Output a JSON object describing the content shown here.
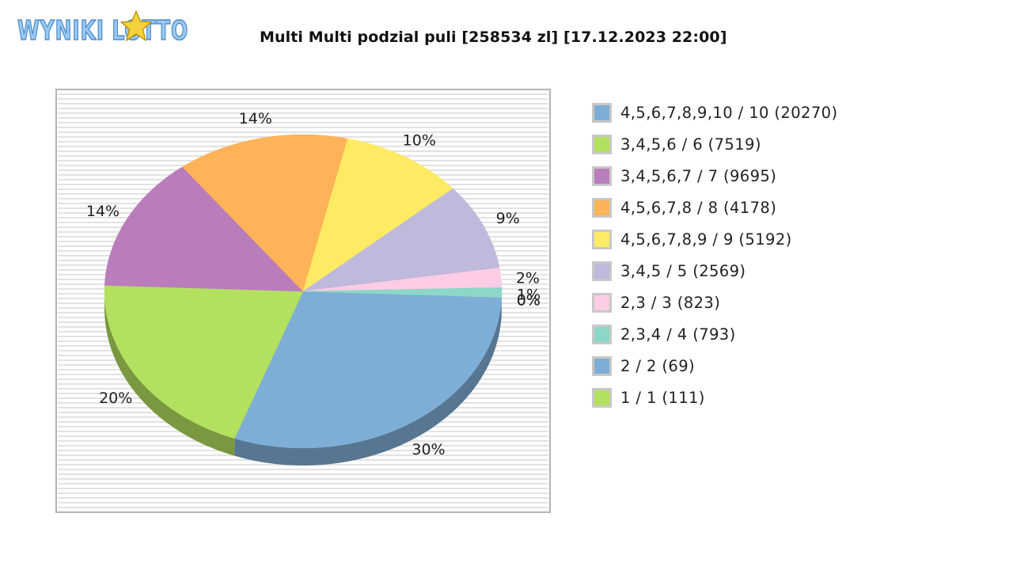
{
  "brand": {
    "logo_text": "WYNIKI LOTTO"
  },
  "chart_data": {
    "type": "pie",
    "title": "Multi Multi podzial puli [258534 zl] [17.12.2023 22:00]",
    "legend_position": "right",
    "slices": [
      {
        "label": "4,5,6,7,8,9,10 / 10 (20270)",
        "value": 20270,
        "percent_label": "30%",
        "color": "#7eaed5"
      },
      {
        "label": "3,4,5,6 / 6 (7519)",
        "value": 7519,
        "percent_label": "20%",
        "color": "#b3e05e"
      },
      {
        "label": "3,4,5,6,7 / 7 (9695)",
        "value": 9695,
        "percent_label": "14%",
        "color": "#ba7dbb"
      },
      {
        "label": "4,5,6,7,8 / 8 (4178)",
        "value": 4178,
        "percent_label": "14%",
        "color": "#feb359"
      },
      {
        "label": "4,5,6,7,8,9 / 9 (5192)",
        "value": 5192,
        "percent_label": "10%",
        "color": "#ffea64"
      },
      {
        "label": "3,4,5 / 5 (2569)",
        "value": 2569,
        "percent_label": "9%",
        "color": "#bfb9db"
      },
      {
        "label": "2,3 / 3 (823)",
        "value": 823,
        "percent_label": "2%",
        "color": "#fecce5"
      },
      {
        "label": "2,3,4 / 4 (793)",
        "value": 793,
        "percent_label": "1%",
        "color": "#8cd7c7"
      },
      {
        "label": "2 / 2 (69)",
        "value": 69,
        "percent_label": "0%",
        "color": "#7eaed5"
      },
      {
        "label": "1 / 1 (111)",
        "value": 111,
        "percent_label": "0%",
        "color": "#b3e05e"
      }
    ],
    "drawn_share_percent": [
      30,
      20,
      14,
      14,
      10,
      9,
      2,
      1,
      0,
      0
    ]
  }
}
